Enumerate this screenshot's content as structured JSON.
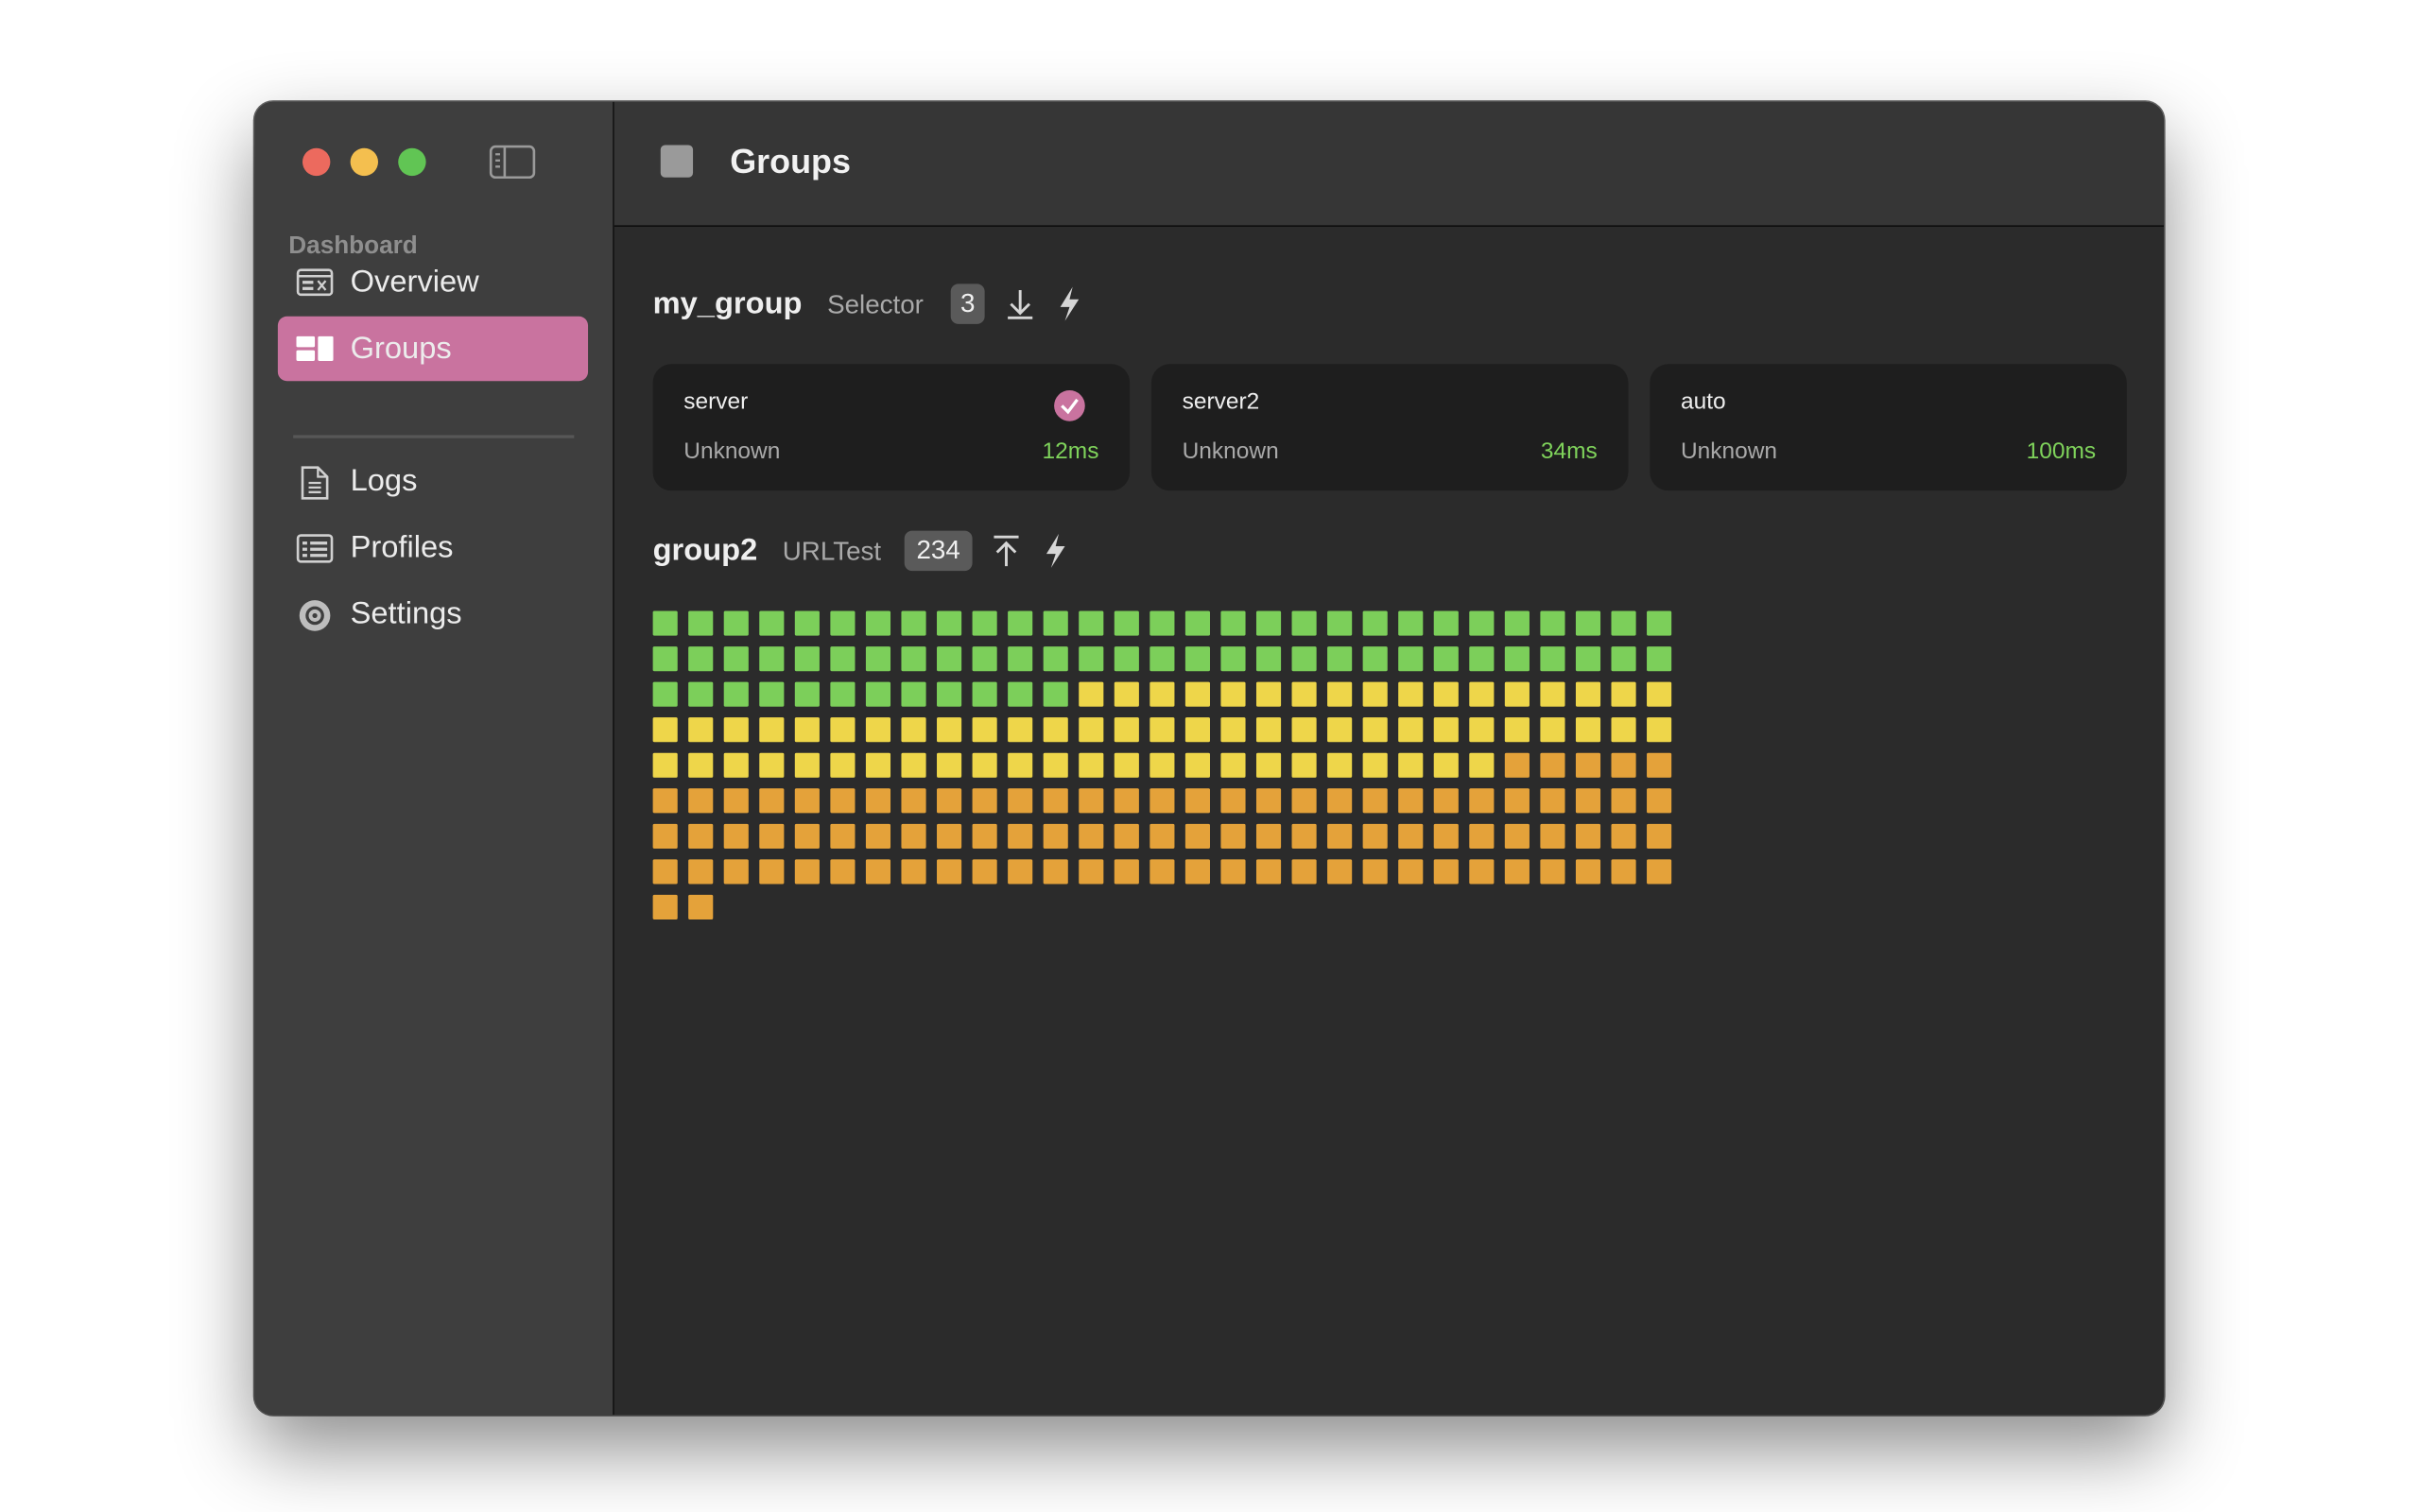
{
  "sidebar": {
    "section": "Dashboard",
    "items": [
      {
        "label": "Overview",
        "icon": "overview",
        "selected": false
      },
      {
        "label": "Groups",
        "icon": "groups",
        "selected": true
      },
      {
        "label": "Logs",
        "icon": "logs",
        "selected": false
      },
      {
        "label": "Profiles",
        "icon": "profiles",
        "selected": false
      },
      {
        "label": "Settings",
        "icon": "settings",
        "selected": false
      }
    ]
  },
  "header": {
    "title": "Groups"
  },
  "groups": [
    {
      "name": "my_group",
      "type": "Selector",
      "count": "3",
      "proxies": [
        {
          "name": "server",
          "status": "Unknown",
          "latency": "12ms",
          "selected": true
        },
        {
          "name": "server2",
          "status": "Unknown",
          "latency": "34ms",
          "selected": false
        },
        {
          "name": "auto",
          "status": "Unknown",
          "latency": "100ms",
          "selected": false
        }
      ]
    },
    {
      "name": "group2",
      "type": "URLTest",
      "count": "234",
      "latency_buckets": [
        {
          "color": "#7ccf5a",
          "count": 70
        },
        {
          "color": "#eed64a",
          "count": 70
        },
        {
          "color": "#e4a23a",
          "count": 94
        }
      ]
    }
  ]
}
